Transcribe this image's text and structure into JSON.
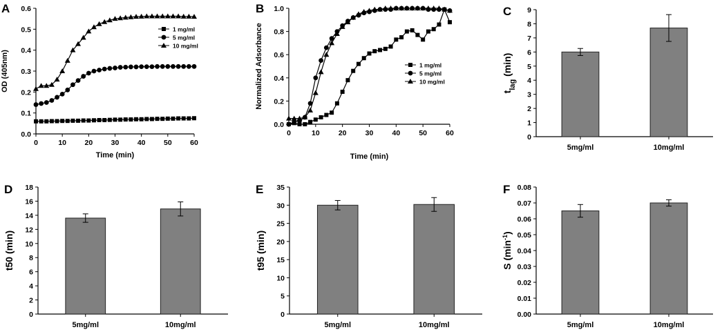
{
  "chart_data": [
    {
      "panel": "A",
      "type": "line",
      "xlabel": "Time (min)",
      "ylabel": "OD (405nm)",
      "xlim": [
        0,
        60
      ],
      "ylim": [
        0,
        0.6
      ],
      "xticks": [
        0,
        10,
        20,
        30,
        40,
        50,
        60
      ],
      "yticks": [
        0.0,
        0.1,
        0.2,
        0.3,
        0.4,
        0.5,
        0.6
      ],
      "legend_position": "right",
      "series": [
        {
          "name": "1 mg/ml",
          "marker": "square",
          "x": [
            0,
            2,
            4,
            6,
            8,
            10,
            12,
            14,
            16,
            18,
            20,
            22,
            24,
            26,
            28,
            30,
            32,
            34,
            36,
            38,
            40,
            42,
            44,
            46,
            48,
            50,
            52,
            54,
            56,
            58,
            60
          ],
          "y": [
            0.06,
            0.06,
            0.06,
            0.061,
            0.061,
            0.062,
            0.062,
            0.063,
            0.063,
            0.064,
            0.064,
            0.065,
            0.066,
            0.066,
            0.067,
            0.068,
            0.068,
            0.069,
            0.069,
            0.07,
            0.07,
            0.071,
            0.071,
            0.072,
            0.072,
            0.073,
            0.073,
            0.074,
            0.074,
            0.074,
            0.075
          ]
        },
        {
          "name": "5 mg/ml",
          "marker": "circle",
          "x": [
            0,
            2,
            4,
            6,
            8,
            10,
            12,
            14,
            16,
            18,
            20,
            22,
            24,
            26,
            28,
            30,
            32,
            34,
            36,
            38,
            40,
            42,
            44,
            46,
            48,
            50,
            52,
            54,
            56,
            58,
            60
          ],
          "y": [
            0.14,
            0.145,
            0.15,
            0.16,
            0.175,
            0.19,
            0.21,
            0.235,
            0.255,
            0.275,
            0.29,
            0.3,
            0.305,
            0.31,
            0.313,
            0.315,
            0.318,
            0.319,
            0.32,
            0.32,
            0.321,
            0.321,
            0.321,
            0.322,
            0.322,
            0.322,
            0.322,
            0.322,
            0.322,
            0.322,
            0.322
          ]
        },
        {
          "name": "10 mg/ml",
          "marker": "triangle",
          "x": [
            0,
            2,
            4,
            6,
            8,
            10,
            12,
            14,
            16,
            18,
            20,
            22,
            24,
            26,
            28,
            30,
            32,
            34,
            36,
            38,
            40,
            42,
            44,
            46,
            48,
            50,
            52,
            54,
            56,
            58,
            60
          ],
          "y": [
            0.215,
            0.23,
            0.23,
            0.235,
            0.26,
            0.3,
            0.35,
            0.4,
            0.43,
            0.46,
            0.49,
            0.51,
            0.525,
            0.535,
            0.543,
            0.55,
            0.553,
            0.556,
            0.558,
            0.56,
            0.561,
            0.562,
            0.562,
            0.562,
            0.562,
            0.562,
            0.562,
            0.562,
            0.561,
            0.561,
            0.56
          ]
        }
      ]
    },
    {
      "panel": "B",
      "type": "line",
      "xlabel": "Time (min)",
      "ylabel": "Normalized Adsorbance",
      "xlim": [
        0,
        60
      ],
      "ylim": [
        0,
        1.0
      ],
      "xticks": [
        0,
        10,
        20,
        30,
        40,
        50,
        60
      ],
      "yticks": [
        0.0,
        0.2,
        0.4,
        0.6,
        0.8,
        1.0
      ],
      "legend_position": "right",
      "series": [
        {
          "name": "1 mg/ml",
          "marker": "square",
          "x": [
            0,
            2,
            4,
            6,
            8,
            10,
            12,
            14,
            16,
            18,
            20,
            22,
            24,
            26,
            28,
            30,
            32,
            34,
            36,
            38,
            40,
            42,
            44,
            46,
            48,
            50,
            52,
            54,
            56,
            58,
            60
          ],
          "y": [
            0.0,
            0.01,
            0.0,
            0.0,
            0.02,
            0.04,
            0.06,
            0.08,
            0.1,
            0.18,
            0.28,
            0.38,
            0.46,
            0.52,
            0.57,
            0.61,
            0.63,
            0.64,
            0.65,
            0.67,
            0.73,
            0.75,
            0.8,
            0.81,
            0.77,
            0.73,
            0.8,
            0.82,
            0.86,
            0.99,
            0.88
          ]
        },
        {
          "name": "5 mg/ml",
          "marker": "circle",
          "x": [
            0,
            2,
            4,
            6,
            8,
            10,
            12,
            14,
            16,
            18,
            20,
            22,
            24,
            26,
            28,
            30,
            32,
            34,
            36,
            38,
            40,
            42,
            44,
            46,
            48,
            50,
            52,
            54,
            56,
            58,
            60
          ],
          "y": [
            0.0,
            0.02,
            0.03,
            0.06,
            0.18,
            0.4,
            0.55,
            0.66,
            0.74,
            0.8,
            0.85,
            0.89,
            0.92,
            0.94,
            0.96,
            0.97,
            0.98,
            0.99,
            0.99,
            0.99,
            1.0,
            1.0,
            1.0,
            1.0,
            1.0,
            1.0,
            0.99,
            0.99,
            0.99,
            0.99,
            0.98
          ]
        },
        {
          "name": "10 mg/ml",
          "marker": "triangle",
          "x": [
            0,
            2,
            4,
            6,
            8,
            10,
            12,
            14,
            16,
            18,
            20,
            22,
            24,
            26,
            28,
            30,
            32,
            34,
            36,
            38,
            40,
            42,
            44,
            46,
            48,
            50,
            52,
            54,
            56,
            58,
            60
          ],
          "y": [
            0.05,
            0.05,
            0.05,
            0.06,
            0.12,
            0.27,
            0.45,
            0.6,
            0.7,
            0.78,
            0.84,
            0.88,
            0.92,
            0.95,
            0.97,
            0.98,
            0.99,
            0.99,
            1.0,
            1.0,
            1.0,
            1.0,
            1.0,
            1.0,
            1.0,
            1.0,
            1.0,
            1.0,
            1.0,
            0.99,
            0.98
          ]
        }
      ]
    },
    {
      "panel": "C",
      "type": "bar",
      "categories": [
        "5mg/ml",
        "10mg/ml"
      ],
      "values": [
        6.0,
        7.7
      ],
      "errors": [
        0.25,
        0.95
      ],
      "ylabel": "t",
      "ylabel_sub": "lag",
      "ylabel_suffix": " (min)",
      "ylim": [
        0,
        9
      ],
      "yticks": [
        0,
        1,
        2,
        3,
        4,
        5,
        6,
        7,
        8,
        9
      ],
      "decimals": 0
    },
    {
      "panel": "D",
      "type": "bar",
      "categories": [
        "5mg/ml",
        "10mg/ml"
      ],
      "values": [
        13.6,
        14.9
      ],
      "errors": [
        0.6,
        1.0
      ],
      "ylabel": "t50 (min)",
      "ylabel_sub": "",
      "ylabel_suffix": "",
      "ylim": [
        0,
        18
      ],
      "yticks": [
        0,
        2,
        4,
        6,
        8,
        10,
        12,
        14,
        16,
        18
      ],
      "decimals": 0
    },
    {
      "panel": "E",
      "type": "bar",
      "categories": [
        "5mg/ml",
        "10mg/ml"
      ],
      "values": [
        30.0,
        30.2
      ],
      "errors": [
        1.3,
        1.9
      ],
      "ylabel": "t95 (min)",
      "ylabel_sub": "",
      "ylabel_suffix": "",
      "ylim": [
        0,
        35
      ],
      "yticks": [
        0,
        5,
        10,
        15,
        20,
        25,
        30,
        35
      ],
      "decimals": 0
    },
    {
      "panel": "F",
      "type": "bar",
      "categories": [
        "5mg/ml",
        "10mg/ml"
      ],
      "values": [
        0.065,
        0.07
      ],
      "errors": [
        0.004,
        0.002
      ],
      "ylabel": "S (min",
      "ylabel_sup": "-1",
      "ylabel_suffix": ")",
      "ylim": [
        0,
        0.08
      ],
      "yticks": [
        0,
        0.01,
        0.02,
        0.03,
        0.04,
        0.05,
        0.06,
        0.07,
        0.08
      ],
      "decimals": 2
    }
  ],
  "colors": {
    "bar_fill": "#808080",
    "line": "#000000",
    "axis": "#000000"
  }
}
